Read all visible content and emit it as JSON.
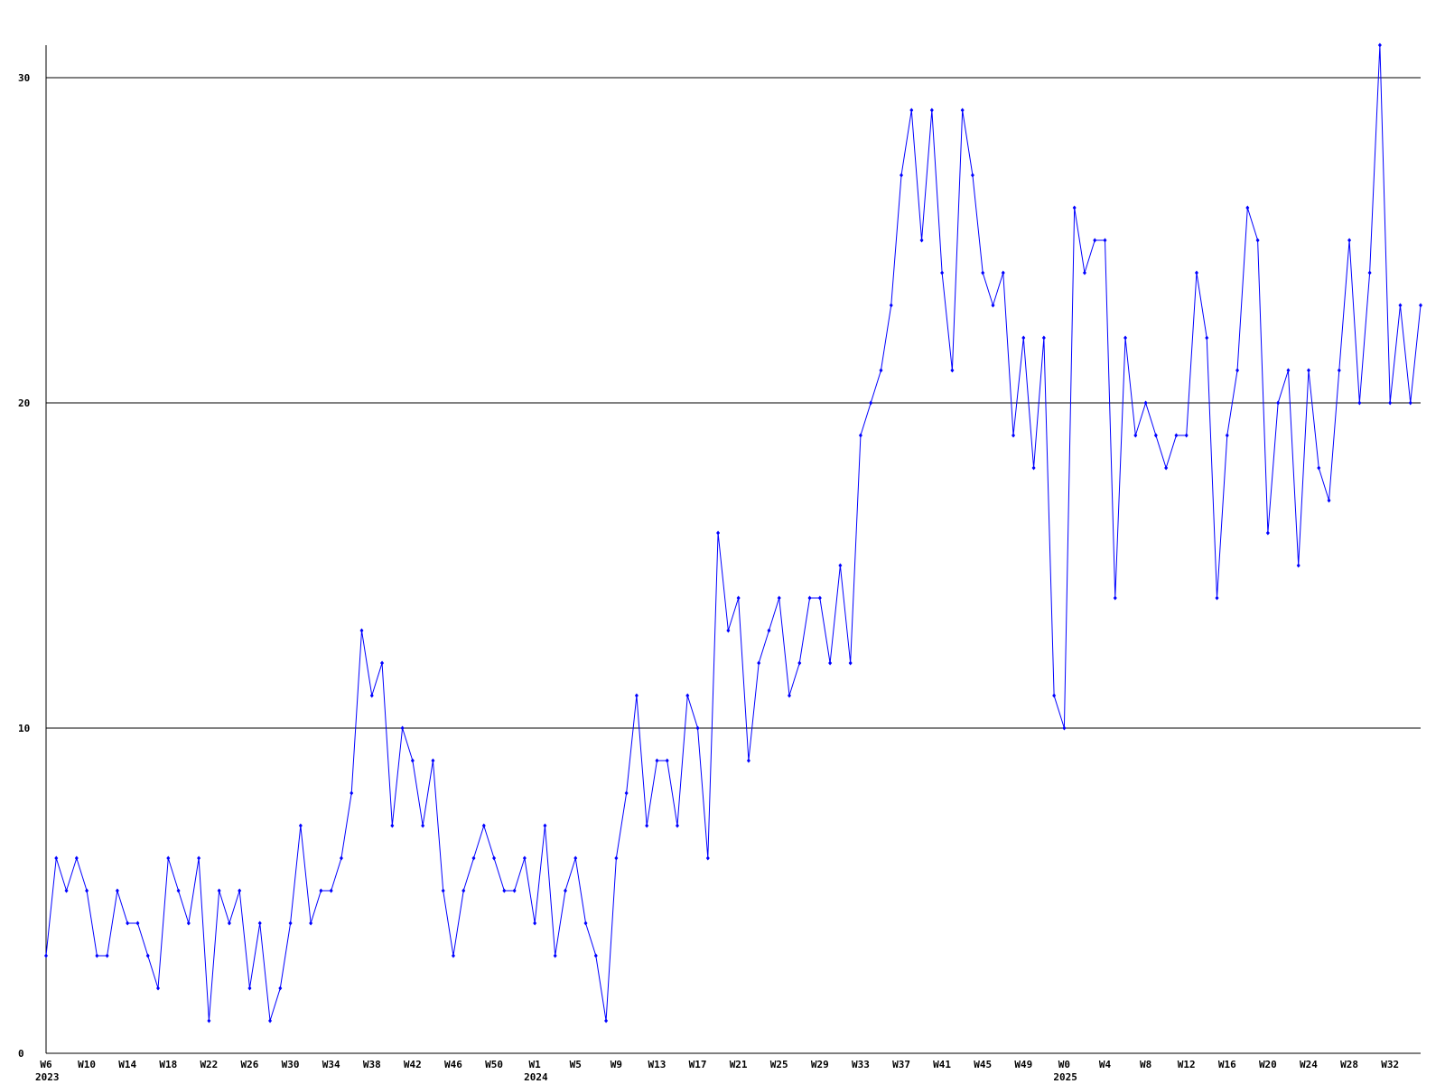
{
  "chart_data": {
    "type": "line",
    "categories": [
      "W6",
      null,
      null,
      null,
      "W10",
      null,
      null,
      null,
      "W14",
      null,
      null,
      null,
      "W18",
      null,
      null,
      null,
      "W22",
      null,
      null,
      null,
      "W26",
      null,
      null,
      null,
      "W30",
      null,
      null,
      null,
      "W34",
      null,
      null,
      null,
      "W38",
      null,
      null,
      null,
      "W42",
      null,
      null,
      null,
      "W46",
      null,
      null,
      null,
      "W50",
      null,
      null,
      null,
      "W1",
      null,
      null,
      null,
      "W5",
      null,
      null,
      null,
      "W9",
      null,
      null,
      null,
      "W13",
      null,
      null,
      null,
      "W17",
      null,
      null,
      null,
      "W21",
      null,
      null,
      null,
      "W25",
      null,
      null,
      null,
      "W29",
      null,
      null,
      null,
      "W33",
      null,
      null,
      null,
      "W37",
      null,
      null,
      null,
      "W41",
      null,
      null,
      null,
      "W45",
      null,
      null,
      null,
      "W49",
      null,
      null,
      null,
      "W0",
      null,
      null,
      null,
      "W4",
      null,
      null,
      null,
      "W8",
      null,
      null,
      null,
      "W12",
      null,
      null,
      null,
      "W16",
      null,
      null,
      null,
      "W20",
      null,
      null,
      null,
      "W24",
      null,
      null,
      null,
      "W28",
      null,
      null,
      null,
      "W32",
      null,
      null,
      null
    ],
    "years": [
      "2023",
      null,
      null,
      null,
      null,
      null,
      null,
      null,
      null,
      null,
      null,
      null,
      null,
      null,
      null,
      null,
      null,
      null,
      null,
      null,
      null,
      null,
      null,
      null,
      null,
      null,
      null,
      null,
      null,
      null,
      null,
      null,
      null,
      null,
      null,
      null,
      null,
      null,
      null,
      null,
      null,
      null,
      null,
      null,
      null,
      null,
      null,
      null,
      "2024",
      null,
      null,
      null,
      null,
      null,
      null,
      null,
      null,
      null,
      null,
      null,
      null,
      null,
      null,
      null,
      null,
      null,
      null,
      null,
      null,
      null,
      null,
      null,
      null,
      null,
      null,
      null,
      null,
      null,
      null,
      null,
      null,
      null,
      null,
      null,
      null,
      null,
      null,
      null,
      null,
      null,
      null,
      null,
      null,
      null,
      null,
      null,
      null,
      null,
      null,
      null,
      "2025",
      null,
      null,
      null,
      null,
      null,
      null,
      null,
      null,
      null,
      null,
      null,
      null,
      null,
      null,
      null,
      null,
      null,
      null,
      null,
      null,
      null,
      null,
      null,
      null,
      null,
      null,
      null,
      null,
      null,
      null,
      null,
      null,
      null,
      null,
      null
    ],
    "series": [
      {
        "color": "#0000ff",
        "values": [
          3,
          6,
          5,
          6,
          5,
          3,
          3,
          5,
          4,
          4,
          3,
          2,
          6,
          5,
          4,
          6,
          1,
          5,
          4,
          5,
          2,
          4,
          1,
          2,
          4,
          7,
          4,
          5,
          5,
          6,
          8,
          13,
          11,
          12,
          7,
          10,
          9,
          7,
          9,
          5,
          3,
          5,
          6,
          7,
          6,
          5,
          5,
          6,
          4,
          7,
          3,
          5,
          6,
          4,
          3,
          1,
          6,
          8,
          11,
          7,
          9,
          9,
          7,
          11,
          10,
          6,
          16,
          13,
          14,
          9,
          12,
          13,
          14,
          11,
          12,
          14,
          14,
          12,
          15,
          12,
          19,
          20,
          21,
          23,
          27,
          29,
          25,
          29,
          24,
          21,
          29,
          27,
          24,
          23,
          24,
          19,
          22,
          18,
          22,
          11,
          10,
          26,
          24,
          25,
          25,
          14,
          22,
          19,
          20,
          19,
          18,
          19,
          19,
          24,
          22,
          14,
          19,
          21,
          26,
          25,
          16,
          20,
          21,
          15,
          21,
          18,
          17,
          21,
          25,
          20,
          24,
          31,
          20,
          23,
          20,
          23
        ]
      }
    ],
    "ylim": [
      0,
      31
    ],
    "yticks": [
      0,
      10,
      20,
      30
    ],
    "grid": true
  }
}
